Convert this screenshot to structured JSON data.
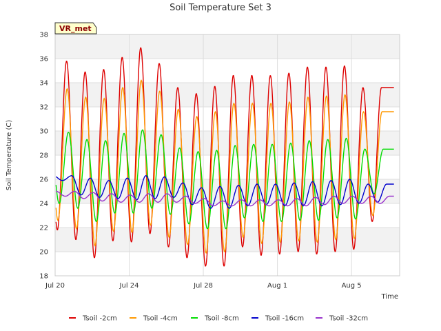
{
  "chart_data": {
    "type": "line",
    "title": "Soil Temperature Set 3",
    "xlabel": "Time",
    "ylabel": "Soil Temperature (C)",
    "badge": "VR_met",
    "xlim": [
      0,
      18.6
    ],
    "ylim": [
      18,
      38
    ],
    "x_ticks": [
      {
        "value": 0,
        "label": "Jul 20"
      },
      {
        "value": 4,
        "label": "Jul 24"
      },
      {
        "value": 8,
        "label": "Jul 28"
      },
      {
        "value": 12,
        "label": "Aug 1"
      },
      {
        "value": 16,
        "label": "Aug 5"
      }
    ],
    "y_ticks": [
      18,
      20,
      22,
      24,
      26,
      28,
      30,
      32,
      34,
      36,
      38
    ],
    "grid": true,
    "legend_position": "bottom",
    "series": [
      {
        "name": "Tsoil -2cm",
        "color": "#dd0000",
        "phase": 0.62,
        "peaks": [
          35.8,
          34.9,
          35.1,
          36.1,
          36.9,
          35.6,
          33.6,
          33.1,
          33.7,
          34.6,
          34.6,
          34.6,
          34.8,
          35.3,
          35.3,
          35.4,
          33.6
        ],
        "troughs": [
          21.8,
          21.0,
          19.5,
          20.9,
          20.8,
          21.5,
          20.4,
          19.5,
          18.8,
          18.8,
          20.4,
          19.7,
          19.8,
          20.0,
          19.8,
          20.0,
          20.2,
          22.5
        ]
      },
      {
        "name": "Tsoil -4cm",
        "color": "#ff9900",
        "phase": 0.65,
        "peaks": [
          33.5,
          32.8,
          32.7,
          33.6,
          34.2,
          33.3,
          31.8,
          31.2,
          31.6,
          32.3,
          32.3,
          32.3,
          32.4,
          32.8,
          32.9,
          33.0,
          31.6
        ],
        "troughs": [
          22.6,
          21.9,
          20.5,
          21.7,
          21.6,
          22.2,
          21.2,
          20.6,
          19.9,
          20.0,
          21.2,
          20.7,
          20.8,
          20.9,
          20.8,
          21.0,
          21.1,
          23.0
        ]
      },
      {
        "name": "Tsoil -8cm",
        "color": "#00dd00",
        "phase": 0.72,
        "peaks": [
          29.9,
          29.3,
          29.2,
          29.8,
          30.1,
          29.7,
          28.6,
          28.3,
          28.4,
          28.8,
          28.9,
          28.9,
          29.0,
          29.2,
          29.3,
          29.4,
          28.5
        ],
        "troughs": [
          24.0,
          23.6,
          22.5,
          23.2,
          23.2,
          23.6,
          23.1,
          22.3,
          21.9,
          21.9,
          22.8,
          22.5,
          22.5,
          22.6,
          22.6,
          22.8,
          22.7,
          24.8
        ]
      },
      {
        "name": "Tsoil -16cm",
        "color": "#0000cc",
        "phase": 0.9,
        "peaks": [
          26.3,
          26.1,
          25.9,
          26.1,
          26.3,
          26.2,
          25.7,
          25.3,
          25.4,
          25.5,
          25.6,
          25.6,
          25.7,
          25.8,
          25.9,
          26.0,
          25.6
        ],
        "troughs": [
          25.9,
          24.7,
          24.5,
          24.4,
          24.3,
          24.4,
          24.5,
          23.9,
          23.6,
          23.6,
          23.8,
          23.9,
          23.8,
          23.8,
          23.8,
          23.9,
          24.0,
          24.1
        ]
      },
      {
        "name": "Tsoil -32cm",
        "color": "#9933cc",
        "phase": 1.05,
        "peaks": [
          25.0,
          24.9,
          24.8,
          24.7,
          24.8,
          24.8,
          24.6,
          24.4,
          24.2,
          24.3,
          24.3,
          24.3,
          24.4,
          24.5,
          24.6,
          24.6,
          24.6
        ],
        "troughs": [
          24.6,
          24.4,
          24.2,
          24.1,
          24.1,
          24.1,
          24.1,
          24.0,
          23.8,
          23.8,
          23.8,
          23.8,
          23.8,
          23.8,
          23.9,
          24.0,
          24.0,
          24.0
        ]
      }
    ]
  }
}
